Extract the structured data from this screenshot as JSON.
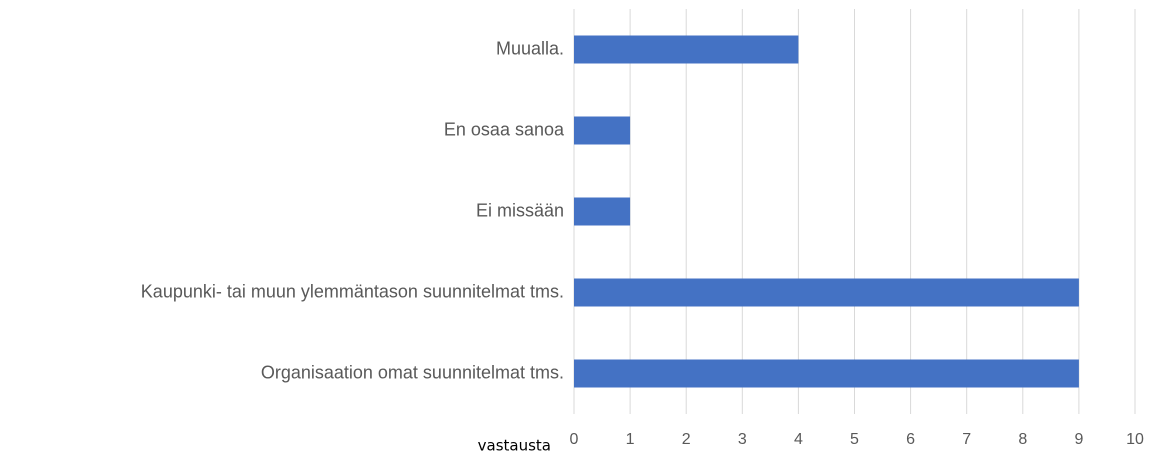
{
  "chart_data": {
    "type": "bar",
    "orientation": "horizontal",
    "x_label": "vastausta",
    "categories": [
      "Muualla.",
      "En osaa sanoa",
      "Ei missään",
      "Kaupunki- tai muun ylemmäntason suunnitelmat tms.",
      "Organisaation omat suunnitelmat tms."
    ],
    "values": [
      4,
      1,
      1,
      9,
      9
    ],
    "color": "#4472c4",
    "xlim": [
      0,
      10
    ],
    "xticks": [
      0,
      1,
      2,
      3,
      4,
      5,
      6,
      7,
      8,
      9,
      10
    ],
    "grid": true
  }
}
